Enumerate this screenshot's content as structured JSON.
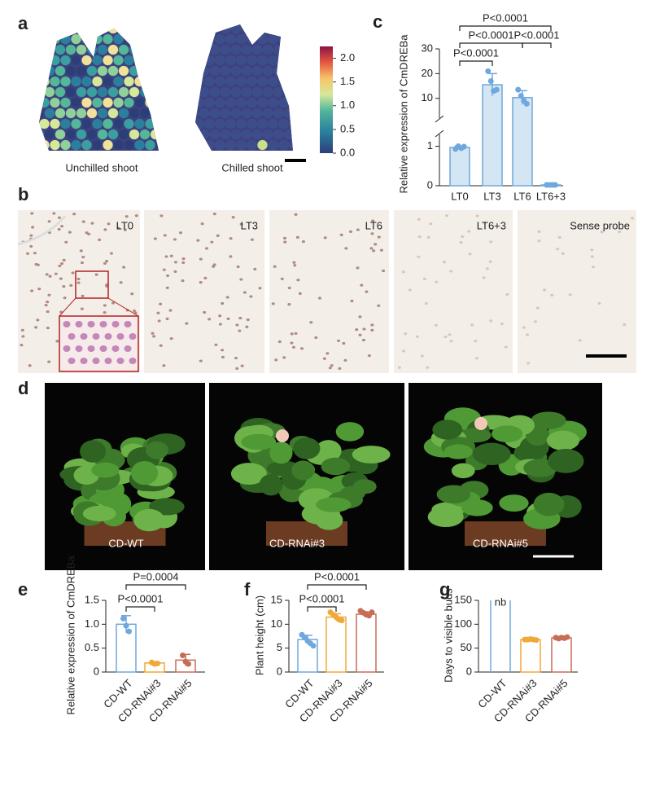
{
  "panel_labels": [
    "a",
    "b",
    "c",
    "d",
    "e",
    "f",
    "g"
  ],
  "panel_a": {
    "captions": [
      "Unchilled shoot",
      "Chilled shoot"
    ],
    "colorbar_lim": [
      0,
      2.25
    ],
    "colorbar_ticks": [
      {
        "value": 0,
        "label": "0.0"
      },
      0.5,
      {
        "value": 1,
        "label": "1.0"
      },
      1.5,
      {
        "value": 2,
        "label": "2.0"
      }
    ]
  },
  "panel_b": {
    "tiles": [
      "LT0",
      "LT3",
      "LT6",
      "LT6+3",
      "Sense probe"
    ]
  },
  "panel_d": {
    "tiles": [
      "CD-WT",
      "CD-RNAi#3",
      "CD-RNAi#5"
    ]
  },
  "chart_data": [
    {
      "type": "bar",
      "ylabel": "Relative expression of CmDREBa",
      "categories": [
        "LT0",
        "LT3",
        "LT6",
        "LT6+3"
      ],
      "values": [
        0.97,
        15.5,
        10.3,
        0.02
      ],
      "errors": [
        0.04,
        4.5,
        2.8,
        0.01
      ],
      "points": [
        [
          0.93,
          1.0,
          0.95,
          0.99
        ],
        [
          21,
          17,
          13,
          13.5
        ],
        [
          13.5,
          11,
          9,
          7.8
        ],
        [
          0.02,
          0.02,
          0.02,
          0.02
        ]
      ],
      "colors": [
        "#6fa8dc",
        "#6fa8dc",
        "#6fa8dc",
        "#6fa8dc"
      ],
      "y_segments": [
        {
          "ylim": [
            0,
            1.3
          ],
          "yticks": [
            0,
            1
          ]
        },
        {
          "ylim": [
            2,
            30
          ],
          "yticks": [
            10,
            20,
            30
          ]
        }
      ],
      "annotations": [
        {
          "text": "P<0.0001",
          "between": [
            0,
            1
          ]
        },
        {
          "text": "P<0.0001",
          "between": [
            0,
            2
          ]
        },
        {
          "text": "P<0.0001",
          "between": [
            2,
            3
          ]
        },
        {
          "text": "P<0.0001",
          "between": [
            0,
            3
          ]
        }
      ]
    },
    {
      "type": "bar",
      "ylabel": "Relative expression of CmDREBa",
      "categories": [
        "CD-WT",
        "CD-RNAi#3",
        "CD-RNAi#5"
      ],
      "values": [
        1.0,
        0.19,
        0.25
      ],
      "errors": [
        0.18,
        0.02,
        0.12
      ],
      "points": [
        [
          1.12,
          0.97,
          0.85
        ],
        [
          0.2,
          0.17,
          0.18
        ],
        [
          0.35,
          0.22,
          0.17
        ]
      ],
      "colors": [
        "#6fa8dc",
        "#f0a838",
        "#c66d57"
      ],
      "ylim": [
        0,
        1.5
      ],
      "yticks": [
        0,
        0.5,
        {
          "value": 1,
          "label": "1.0"
        },
        1.5
      ],
      "annotations": [
        {
          "text": "P<0.0001",
          "between": [
            0,
            1
          ]
        },
        {
          "text": "P=0.0004",
          "between": [
            0,
            2
          ]
        }
      ]
    },
    {
      "type": "bar",
      "ylabel": "Plant height (cm)",
      "categories": [
        "CD-WT",
        "CD-RNAi#3",
        "CD-RNAi#5"
      ],
      "values": [
        6.8,
        11.5,
        12.1
      ],
      "errors": [
        0.9,
        0.7,
        0.5
      ],
      "points": [
        [
          7.8,
          7.2,
          6.5,
          6.0,
          5.5
        ],
        [
          12.5,
          12.0,
          11.5,
          11.0,
          10.8
        ],
        [
          12.8,
          12.4,
          12.0,
          11.8,
          12.5
        ]
      ],
      "colors": [
        "#6fa8dc",
        "#f0a838",
        "#c66d57"
      ],
      "ylim": [
        0,
        15
      ],
      "yticks": [
        0,
        5,
        10,
        15
      ],
      "annotations": [
        {
          "text": "P<0.0001",
          "between": [
            0,
            1
          ]
        },
        {
          "text": "P<0.0001",
          "between": [
            0,
            2
          ]
        }
      ]
    },
    {
      "type": "bar",
      "ylabel": "Days to visible buds",
      "categories": [
        "CD-WT",
        "CD-RNAi#3",
        "CD-RNAi#5"
      ],
      "values": [
        null,
        68,
        71.5
      ],
      "errors": [
        null,
        1,
        1.5
      ],
      "points": [
        [],
        [
          68,
          68,
          69,
          68,
          67
        ],
        [
          72,
          70,
          72,
          71,
          73
        ]
      ],
      "colors": [
        "#6fa8dc",
        "#f0a838",
        "#c66d57"
      ],
      "ylim": [
        0,
        150
      ],
      "yticks": [
        0,
        50,
        100,
        150
      ],
      "annotations": [
        {
          "text": "nb",
          "between": [
            0,
            0
          ]
        }
      ]
    }
  ]
}
